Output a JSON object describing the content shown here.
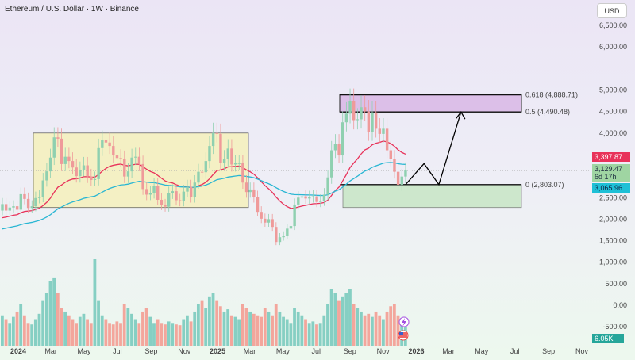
{
  "header": {
    "title": "Ethereum / U.S. Dollar · 1W · Binance",
    "currency": "USD"
  },
  "chart_data": {
    "type": "candlestick",
    "title": "Ethereum / U.S. Dollar · 1W · Binance",
    "y_ticks": [
      "6,500.00",
      "6,000.00",
      "5,000.00",
      "4,500.00",
      "4,000.00",
      "2,500.00",
      "2,000.00",
      "1,500.00",
      "1,000.00",
      "500.00",
      "0.00",
      "-500.00"
    ],
    "y_tick_values": [
      6500,
      6000,
      5000,
      4500,
      4000,
      2500,
      2000,
      1500,
      1000,
      500,
      0,
      -500
    ],
    "x_ticks": [
      {
        "label": "2024",
        "bold": true,
        "day": 0
      },
      {
        "label": "Mar",
        "day": 60
      },
      {
        "label": "May",
        "day": 121
      },
      {
        "label": "Jul",
        "day": 182
      },
      {
        "label": "Sep",
        "day": 244
      },
      {
        "label": "Nov",
        "day": 305
      },
      {
        "label": "2025",
        "bold": true,
        "day": 366
      },
      {
        "label": "Mar",
        "day": 425
      },
      {
        "label": "May",
        "day": 486
      },
      {
        "label": "Jul",
        "day": 547
      },
      {
        "label": "Sep",
        "day": 609
      },
      {
        "label": "Nov",
        "day": 670
      },
      {
        "label": "2026",
        "bold": true,
        "day": 731
      },
      {
        "label": "Mar",
        "day": 790
      },
      {
        "label": "May",
        "day": 851
      },
      {
        "label": "Jul",
        "day": 912
      },
      {
        "label": "Sep",
        "day": 974
      },
      {
        "label": "Nov",
        "day": 1035
      }
    ],
    "start_open": 2200,
    "closes": [
      2350,
      2200,
      2270,
      2300,
      2220,
      2580,
      2470,
      2260,
      2300,
      2490,
      2520,
      2900,
      3110,
      3430,
      3900,
      3870,
      3280,
      3450,
      3350,
      3200,
      3000,
      3150,
      3250,
      2990,
      2910,
      2930,
      3650,
      3830,
      3780,
      3700,
      3480,
      3420,
      3390,
      2990,
      3110,
      3430,
      3450,
      3280,
      2700,
      2570,
      2610,
      2780,
      2450,
      2330,
      2290,
      2600,
      2650,
      2440,
      2420,
      2640,
      2750,
      2510,
      2850,
      3100,
      3090,
      3350,
      3700,
      4000,
      3980,
      3300,
      3400,
      3640,
      3270,
      3300,
      3300,
      2850,
      2630,
      2690,
      2510,
      2170,
      2010,
      1920,
      2000,
      1820,
      1470,
      1580,
      1620,
      1780,
      1840,
      2340,
      2500,
      2530,
      2480,
      2510,
      2530,
      2400,
      2430,
      2570,
      2970,
      3600,
      3750,
      3480,
      4250,
      4450,
      4750,
      4300,
      4320,
      4600,
      4500,
      4020,
      4480,
      4100,
      3980,
      4100,
      3600,
      3400,
      3100,
      2800,
      2990,
      3130
    ],
    "volumes": [
      40,
      35,
      30,
      38,
      45,
      55,
      40,
      30,
      28,
      35,
      42,
      60,
      70,
      85,
      90,
      70,
      50,
      45,
      40,
      35,
      30,
      38,
      42,
      35,
      30,
      115,
      60,
      40,
      35,
      30,
      28,
      32,
      30,
      55,
      50,
      42,
      35,
      30,
      45,
      50,
      38,
      30,
      35,
      30,
      28,
      32,
      30,
      28,
      27,
      35,
      40,
      32,
      45,
      55,
      60,
      50,
      65,
      70,
      60,
      52,
      45,
      48,
      40,
      38,
      35,
      55,
      50,
      45,
      42,
      40,
      38,
      50,
      45,
      40,
      55,
      45,
      38,
      35,
      30,
      50,
      45,
      40,
      35,
      30,
      32,
      28,
      30,
      40,
      55,
      75,
      70,
      60,
      65,
      70,
      75,
      55,
      50,
      45,
      40,
      42,
      38,
      45,
      40,
      35,
      45,
      52,
      55,
      40,
      30,
      25
    ],
    "ma_fast_period": 20,
    "ma_slow_period": 50,
    "colors": {
      "up": "#8fd0b0",
      "down": "#ef9a9a",
      "ma_fast": "#e8325a",
      "ma_slow": "#29b6d3",
      "vol_up": "#86cfc3",
      "vol_down": "#f3a69c"
    },
    "zones": [
      {
        "name": "range-box",
        "top": 4000,
        "bottom": 2270,
        "color": "#f4f0c4"
      },
      {
        "name": "fib-zone",
        "top": 4888.71,
        "bottom": 4490.48,
        "color": "#dcbfe8"
      },
      {
        "name": "support-zone",
        "top": 2803.07,
        "bottom": 2270,
        "color": "#cde7cc"
      }
    ],
    "fib_levels": [
      {
        "label": "0.618 (4,888.71)",
        "price": 4888.71
      },
      {
        "label": "0.5 (4,490.48)",
        "price": 4490.48
      },
      {
        "label": "0 (2,803.07)",
        "price": 2803.07
      }
    ],
    "projection_path": [
      {
        "week": 109,
        "price": 2803
      },
      {
        "week": 114,
        "price": 3290
      },
      {
        "week": 118,
        "price": 2803
      },
      {
        "week": 124,
        "price": 4490
      }
    ],
    "price_badges": {
      "ma_fast": "3,397.87",
      "last": "3,129.47",
      "countdown": "6d 17h",
      "ma_slow": "3,065.96",
      "volume": "6.05K"
    }
  }
}
